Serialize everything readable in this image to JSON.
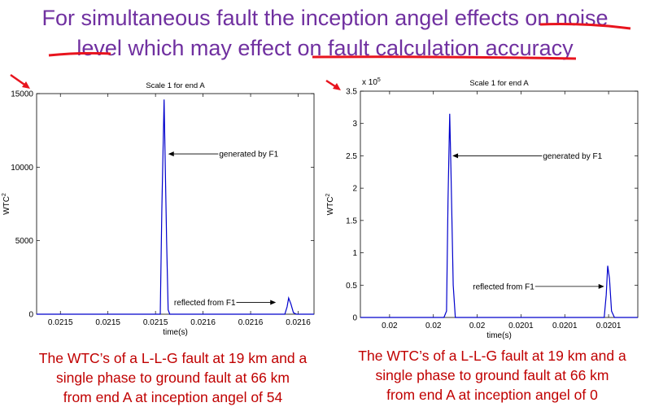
{
  "slide": {
    "title_parts": [
      "For simultaneous fault the inception angel effects on ",
      "noise",
      " ",
      "level",
      " which may effect on ",
      "fault calculation accuracy"
    ],
    "underline_color": "#e8141e",
    "title_color": "#7030a0",
    "caption_color": "#c00000",
    "captions": [
      [
        "The WTC’s of a L-L-G fault at 19 km and a",
        "single phase to ground fault at 66 km",
        "from end A at inception angel of 54"
      ],
      [
        "The WTC’s of a L-L-G fault at 19 km and a",
        "single phase to ground fault at 66 km",
        "from end A at inception angel of 0"
      ]
    ]
  },
  "chart_data": [
    {
      "type": "line",
      "title": "Scale 1 for end A",
      "xlabel": "time(s)",
      "ylabel": "WTC",
      "ylabel_sup": "2",
      "ylim": [
        0,
        15000
      ],
      "yticks": [
        0,
        5000,
        10000,
        15000
      ],
      "xtick_labels": [
        "0.0215",
        "0.0215",
        "0.0215",
        "0.0216",
        "0.0216",
        "0.0216"
      ],
      "xtick_pos": [
        0.0214975,
        0.0215125,
        0.0215275,
        0.0215425,
        0.0215575,
        0.0215725
      ],
      "xlim": [
        0.02149,
        0.0215775
      ],
      "multiplier": "",
      "series_color": "#0000cc",
      "series": [
        {
          "x": [
            0.02149,
            0.02152,
            0.0215265,
            0.021529,
            0.0215295,
            0.0215302,
            0.021531,
            0.0215315,
            0.021532,
            0.021556,
            0.0215683,
            0.021569,
            0.0215695,
            0.0215702,
            0.021571,
            0.021572,
            0.0215775
          ],
          "y": [
            0,
            0,
            0,
            0,
            7000,
            14600,
            5000,
            300,
            0,
            0,
            0,
            500,
            1100,
            700,
            100,
            0,
            0
          ]
        }
      ],
      "annotations": [
        {
          "text": "generated by F1",
          "tip": [
            0.0215315,
            10900
          ]
        },
        {
          "text": "reflected from F1",
          "tip": [
            0.0215655,
            800
          ]
        }
      ]
    },
    {
      "type": "line",
      "title": "Scale 1 for end A",
      "xlabel": "time(s)",
      "ylabel": "WTC",
      "ylabel_sup": "2",
      "ylim": [
        0,
        3.5
      ],
      "yticks": [
        0,
        0.5,
        1,
        1.5,
        2,
        2.5,
        3,
        3.5
      ],
      "xtick_labels": [
        "0.02",
        "0.02",
        "0.02",
        "0.0201",
        "0.0201",
        "0.0201"
      ],
      "xtick_pos": [
        0.020005,
        0.02002,
        0.020035,
        0.02005,
        0.020065,
        0.02008
      ],
      "xlim": [
        0.019995,
        0.02009
      ],
      "multiplier": "x 10",
      "multiplier_exp": "5",
      "series_color": "#0000cc",
      "series": [
        {
          "x": [
            0.019995,
            0.02001,
            0.0200236,
            0.0200245,
            0.020025,
            0.0200256,
            0.020026,
            0.0200268,
            0.0200275,
            0.02005,
            0.0200785,
            0.0200792,
            0.0200797,
            0.0200803,
            0.020081,
            0.020082,
            0.02009
          ],
          "y": [
            0,
            0,
            0,
            0.1,
            1.8,
            3.15,
            2.3,
            0.5,
            0,
            0,
            0,
            0.35,
            0.8,
            0.6,
            0.1,
            0,
            0
          ]
        }
      ],
      "annotations": [
        {
          "text": "generated by F1",
          "tip": [
            0.0200265,
            2.5
          ]
        },
        {
          "text": "reflected from F1",
          "tip": [
            0.0200785,
            0.48
          ]
        }
      ]
    }
  ]
}
